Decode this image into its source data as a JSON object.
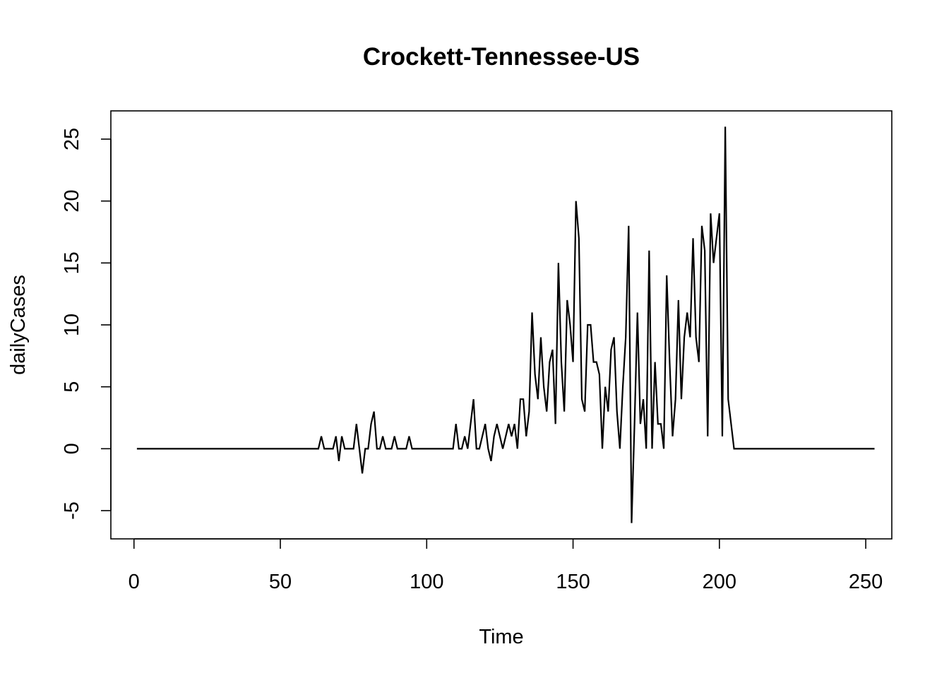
{
  "chart_data": {
    "type": "line",
    "title": "Crockett-Tennessee-US",
    "xlabel": "Time",
    "ylabel": "dailyCases",
    "xlim": [
      -7.9,
      258.9
    ],
    "ylim": [
      -7.28,
      27.28
    ],
    "xticks": [
      0,
      50,
      100,
      150,
      200,
      250
    ],
    "yticks": [
      -5,
      0,
      5,
      10,
      15,
      20,
      25
    ],
    "grid": false,
    "legend": "none",
    "color": "#000000",
    "series": [
      {
        "values": [
          0,
          0,
          0,
          0,
          0,
          0,
          0,
          0,
          0,
          0,
          0,
          0,
          0,
          0,
          0,
          0,
          0,
          0,
          0,
          0,
          0,
          0,
          0,
          0,
          0,
          0,
          0,
          0,
          0,
          0,
          0,
          0,
          0,
          0,
          0,
          0,
          0,
          0,
          0,
          0,
          0,
          0,
          0,
          0,
          0,
          0,
          0,
          0,
          0,
          0,
          0,
          0,
          0,
          0,
          0,
          0,
          0,
          0,
          0,
          0,
          0,
          0,
          0,
          1,
          0,
          0,
          0,
          0,
          1,
          -1,
          1,
          0,
          0,
          0,
          0,
          2,
          0,
          -2,
          0,
          0,
          2,
          3,
          0,
          0,
          1,
          0,
          0,
          0,
          1,
          0,
          0,
          0,
          0,
          1,
          0,
          0,
          0,
          0,
          0,
          0,
          0,
          0,
          0,
          0,
          0,
          0,
          0,
          0,
          0,
          2,
          0,
          0,
          1,
          0,
          2,
          4,
          0,
          0,
          1,
          2,
          0,
          -1,
          1,
          2,
          1,
          0,
          1,
          2,
          1,
          2,
          0,
          4,
          4,
          1,
          3,
          11,
          6,
          4,
          9,
          5,
          3,
          7,
          8,
          2,
          15,
          7,
          3,
          12,
          10,
          7,
          20,
          17,
          4,
          3,
          10,
          10,
          7,
          7,
          6,
          0,
          5,
          3,
          8,
          9,
          3,
          0,
          5,
          9,
          18,
          -6,
          2,
          11,
          2,
          4,
          0,
          16,
          0,
          7,
          2,
          2,
          0,
          14,
          7,
          1,
          4,
          12,
          4,
          9,
          11,
          9,
          17,
          9,
          7,
          18,
          16,
          1,
          19,
          15,
          17,
          19,
          1,
          26,
          4,
          2,
          0,
          0,
          0,
          0,
          0,
          0,
          0,
          0,
          0,
          0,
          0,
          0,
          0,
          0,
          0,
          0,
          0,
          0,
          0,
          0,
          0,
          0,
          0,
          0,
          0,
          0,
          0,
          0,
          0,
          0,
          0,
          0,
          0,
          0,
          0,
          0,
          0,
          0,
          0,
          0,
          0,
          0,
          0,
          0,
          0,
          0,
          0,
          0,
          0
        ]
      }
    ]
  }
}
